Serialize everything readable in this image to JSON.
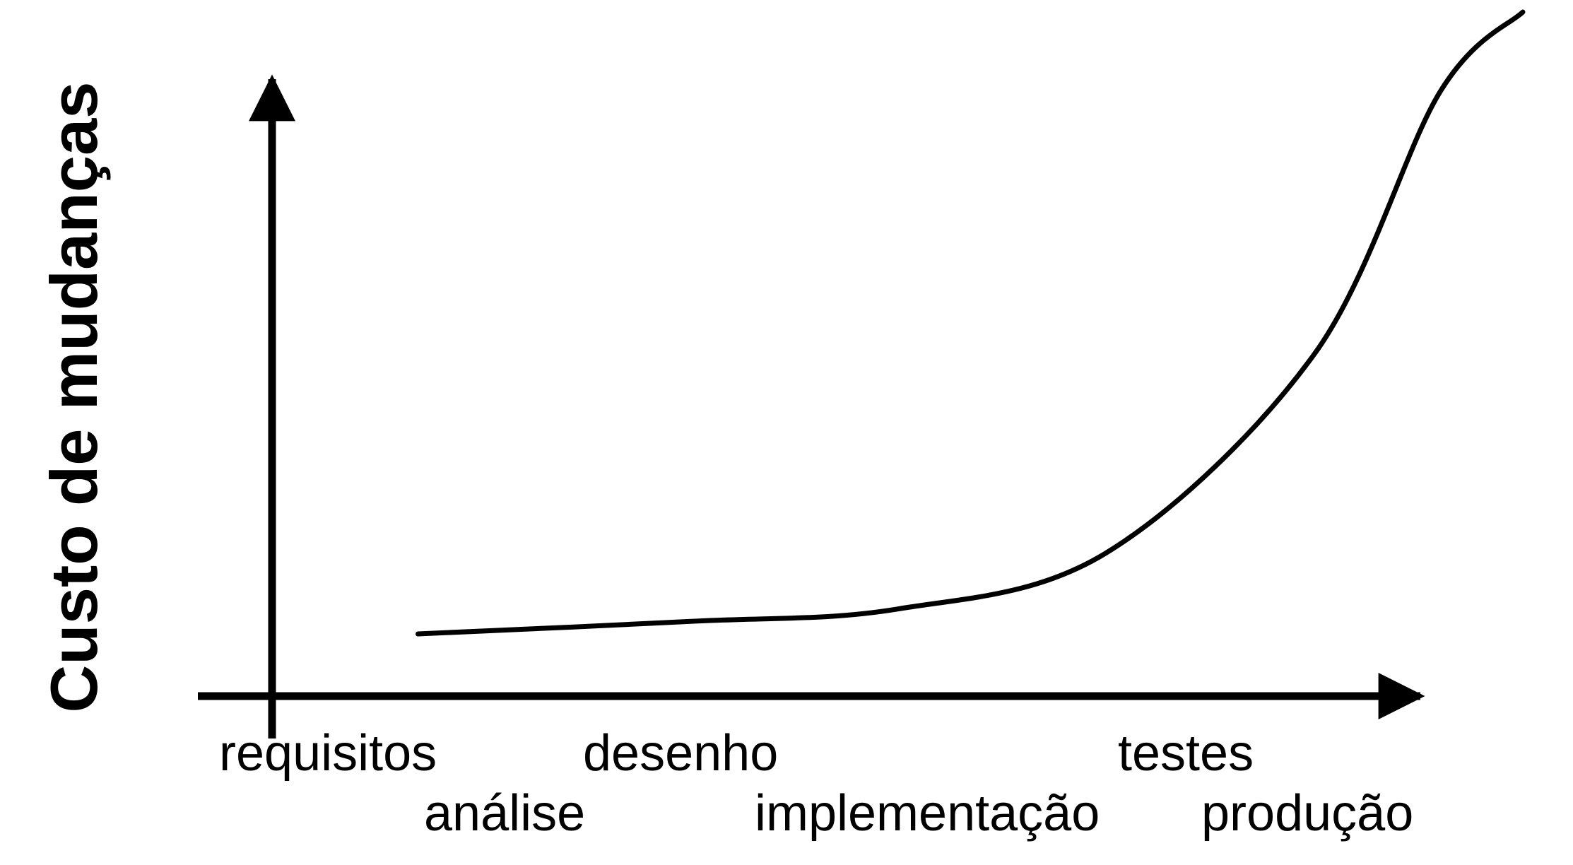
{
  "chart_data": {
    "type": "line",
    "ylabel": "Custo de mudanças",
    "xlabel": "",
    "categories": [
      "requisitos",
      "análise",
      "desenho",
      "implementação",
      "testes",
      "produção"
    ],
    "x": [
      0.7,
      2.0,
      3.0,
      4.0,
      5.0,
      5.6,
      6.0
    ],
    "values": [
      1.0,
      1.2,
      1.4,
      2.3,
      5.5,
      9.7,
      11.0
    ],
    "ylim": [
      0,
      11
    ],
    "grid": false,
    "legend": "none",
    "line_color": "#000000",
    "axis_color": "#000000"
  }
}
